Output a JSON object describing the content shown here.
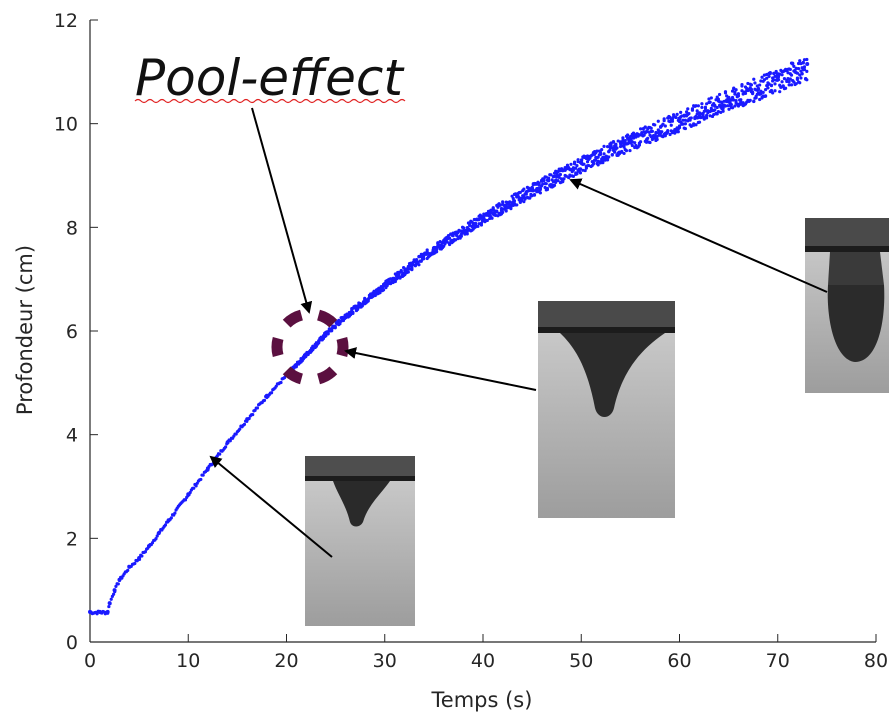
{
  "chart_data": {
    "type": "scatter",
    "title": "",
    "xlabel": "Temps (s)",
    "ylabel": "Profondeur (cm)",
    "xlim": [
      0,
      80
    ],
    "ylim": [
      0,
      12
    ],
    "xticks": [
      0,
      10,
      20,
      30,
      40,
      50,
      60,
      70,
      80
    ],
    "yticks": [
      0,
      2,
      4,
      6,
      8,
      10,
      12
    ],
    "grid": false,
    "legend": "none",
    "series": [
      {
        "color": "#1a1aff",
        "x": [
          0,
          1,
          1.8,
          2,
          2.5,
          3,
          4,
          5,
          6,
          7,
          8,
          10,
          12,
          14,
          16,
          18,
          20,
          22,
          24,
          26,
          28,
          30,
          35,
          40,
          45,
          50,
          55,
          60,
          65,
          70,
          73
        ],
        "y": [
          0.58,
          0.58,
          0.58,
          0.75,
          1.0,
          1.2,
          1.45,
          1.62,
          1.85,
          2.1,
          2.35,
          2.85,
          3.35,
          3.85,
          4.3,
          4.75,
          5.15,
          5.55,
          5.95,
          6.3,
          6.6,
          6.9,
          7.6,
          8.2,
          8.75,
          9.25,
          9.7,
          10.1,
          10.5,
          10.9,
          11.15
        ]
      }
    ],
    "annotations": [
      {
        "text": "Pool-effect",
        "target": [
          23,
          6.1
        ]
      },
      {
        "type": "image-inset",
        "target": [
          12.5,
          3.55
        ]
      },
      {
        "type": "image-inset",
        "target": [
          26,
          5.6
        ]
      },
      {
        "type": "image-inset",
        "target": [
          48.5,
          8.9
        ]
      }
    ]
  },
  "colors": {
    "series": "#1a1aff",
    "axis": "#262626",
    "marker_circle": "#5b1040",
    "arrow": "#000000",
    "underline": "#e02020"
  }
}
